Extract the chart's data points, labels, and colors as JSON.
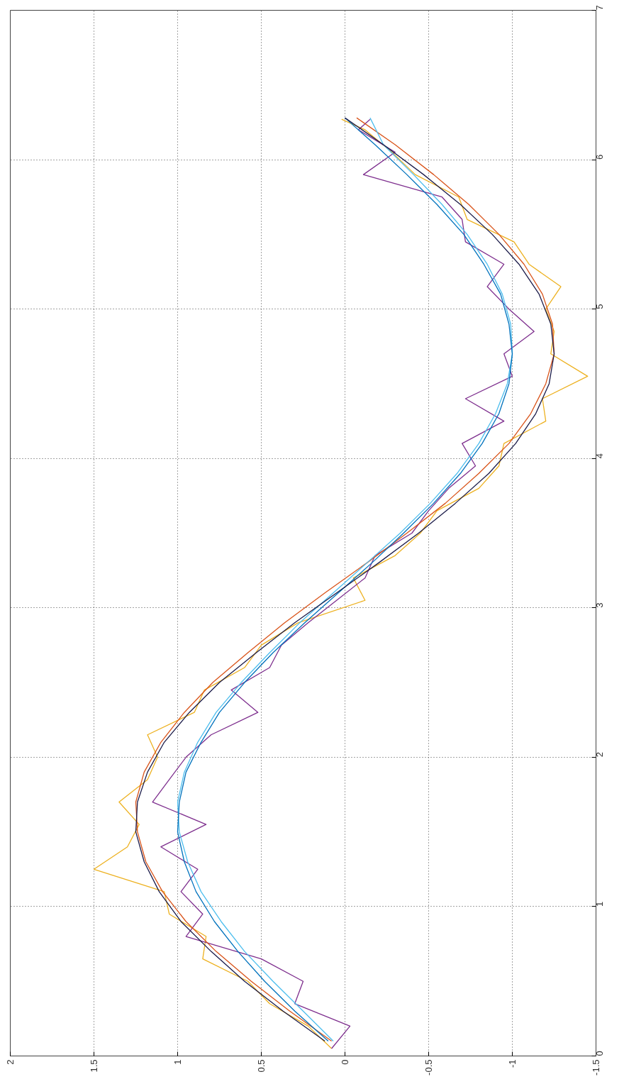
{
  "chart_data": {
    "type": "line",
    "xlim": [
      2,
      -1.5
    ],
    "ylim": [
      0,
      7
    ],
    "xticks": [
      2,
      1.5,
      1,
      0.5,
      0,
      -0.5,
      -1,
      -1.5
    ],
    "yticks": [
      0,
      1,
      2,
      3,
      4,
      5,
      6,
      7
    ],
    "grid": true,
    "line_style": "solid",
    "marker": "none",
    "series": [
      {
        "color": "#edb120",
        "x": [
          0.08,
          0.22,
          0.45,
          0.58,
          0.85,
          0.83,
          1.05,
          1.08,
          1.5,
          1.3,
          1.23,
          1.35,
          1.18,
          1.12,
          1.18,
          0.9,
          0.84,
          0.6,
          0.5,
          0.28,
          -0.12,
          -0.05,
          -0.3,
          -0.45,
          -0.55,
          -0.8,
          -0.92,
          -0.95,
          -1.2,
          -1.18,
          -1.45,
          -1.23,
          -1.25,
          -1.2,
          -1.29,
          -1.1,
          -1.01,
          -0.73,
          -0.68,
          -0.42,
          -0.28,
          -0.12,
          0.02
        ],
        "values": [
          0.05,
          0.2,
          0.35,
          0.5,
          0.65,
          0.8,
          0.95,
          1.1,
          1.25,
          1.4,
          1.55,
          1.7,
          1.85,
          2.0,
          2.15,
          2.3,
          2.45,
          2.6,
          2.75,
          2.9,
          3.05,
          3.2,
          3.35,
          3.5,
          3.65,
          3.8,
          3.95,
          4.1,
          4.25,
          4.4,
          4.55,
          4.7,
          4.85,
          5.0,
          5.15,
          5.3,
          5.45,
          5.6,
          5.75,
          5.9,
          6.05,
          6.2,
          6.27
        ]
      },
      {
        "color": "#7e2f8e",
        "x": [
          0.08,
          -0.03,
          0.3,
          0.25,
          0.5,
          0.95,
          0.85,
          0.98,
          0.88,
          1.1,
          0.83,
          1.15,
          1.05,
          0.95,
          0.8,
          0.52,
          0.68,
          0.45,
          0.38,
          0.22,
          0.05,
          -0.12,
          -0.18,
          -0.4,
          -0.5,
          -0.62,
          -0.78,
          -0.7,
          -0.95,
          -0.72,
          -1.0,
          -0.95,
          -1.13,
          -0.98,
          -0.85,
          -0.95,
          -0.72,
          -0.7,
          -0.58,
          -0.11,
          -0.3,
          -0.08,
          -0.15
        ],
        "values": [
          0.05,
          0.2,
          0.35,
          0.5,
          0.65,
          0.8,
          0.95,
          1.1,
          1.25,
          1.4,
          1.55,
          1.7,
          1.85,
          2.0,
          2.15,
          2.3,
          2.45,
          2.6,
          2.75,
          2.9,
          3.05,
          3.2,
          3.35,
          3.5,
          3.65,
          3.8,
          3.95,
          4.1,
          4.25,
          4.4,
          4.55,
          4.7,
          4.85,
          5.0,
          5.15,
          5.3,
          5.45,
          5.6,
          5.75,
          5.9,
          6.05,
          6.2,
          6.27
        ]
      },
      {
        "color": "#d95319",
        "x": [
          0.08,
          0.33,
          0.56,
          0.77,
          0.95,
          1.09,
          1.19,
          1.24,
          1.25,
          1.2,
          1.1,
          0.96,
          0.79,
          0.58,
          0.36,
          0.12,
          -0.13,
          -0.37,
          -0.6,
          -0.8,
          -0.98,
          -1.11,
          -1.2,
          -1.25,
          -1.24,
          -1.18,
          -1.07,
          -0.92,
          -0.74,
          -0.53,
          -0.3,
          -0.07
        ],
        "values": [
          0.1,
          0.3,
          0.5,
          0.7,
          0.9,
          1.1,
          1.3,
          1.5,
          1.7,
          1.9,
          2.1,
          2.3,
          2.5,
          2.7,
          2.9,
          3.1,
          3.3,
          3.5,
          3.7,
          3.9,
          4.1,
          4.3,
          4.5,
          4.7,
          4.9,
          5.1,
          5.3,
          5.5,
          5.7,
          5.9,
          6.1,
          6.28
        ]
      },
      {
        "color": "#4dbeee",
        "x": [
          0.07,
          0.25,
          0.43,
          0.6,
          0.74,
          0.86,
          0.94,
          0.99,
          1.0,
          0.96,
          0.88,
          0.77,
          0.62,
          0.45,
          0.27,
          0.07,
          -0.13,
          -0.33,
          -0.51,
          -0.67,
          -0.8,
          -0.9,
          -0.97,
          -1.0,
          -0.99,
          -0.94,
          -0.85,
          -0.73,
          -0.58,
          -0.41,
          -0.23,
          -0.15
        ],
        "values": [
          0.1,
          0.3,
          0.5,
          0.7,
          0.9,
          1.1,
          1.3,
          1.5,
          1.7,
          1.9,
          2.1,
          2.3,
          2.5,
          2.7,
          2.9,
          3.1,
          3.3,
          3.5,
          3.7,
          3.9,
          4.1,
          4.3,
          4.5,
          4.7,
          4.9,
          5.1,
          5.3,
          5.5,
          5.7,
          5.9,
          6.1,
          6.28
        ]
      },
      {
        "color": "#0072bd",
        "x": [
          0.1,
          0.3,
          0.48,
          0.64,
          0.78,
          0.89,
          0.96,
          1.0,
          0.99,
          0.95,
          0.86,
          0.75,
          0.6,
          0.43,
          0.24,
          0.04,
          -0.16,
          -0.35,
          -0.53,
          -0.69,
          -0.82,
          -0.92,
          -0.98,
          -1.0,
          -0.98,
          -0.93,
          -0.83,
          -0.71,
          -0.55,
          -0.37,
          -0.18,
          0.0
        ],
        "values": [
          0.1,
          0.3,
          0.5,
          0.7,
          0.9,
          1.1,
          1.3,
          1.5,
          1.7,
          1.9,
          2.1,
          2.3,
          2.5,
          2.7,
          2.9,
          3.1,
          3.3,
          3.5,
          3.7,
          3.9,
          4.1,
          4.3,
          4.5,
          4.7,
          4.9,
          5.1,
          5.3,
          5.5,
          5.7,
          5.9,
          6.1,
          6.28
        ]
      },
      {
        "color": "#1c1c4a",
        "x": [
          0.12,
          0.37,
          0.6,
          0.8,
          0.98,
          1.11,
          1.2,
          1.25,
          1.24,
          1.18,
          1.08,
          0.93,
          0.75,
          0.53,
          0.3,
          0.05,
          -0.2,
          -0.44,
          -0.66,
          -0.86,
          -1.02,
          -1.14,
          -1.22,
          -1.25,
          -1.23,
          -1.16,
          -1.04,
          -0.88,
          -0.69,
          -0.47,
          -0.23,
          0.0
        ],
        "values": [
          0.1,
          0.3,
          0.5,
          0.7,
          0.9,
          1.1,
          1.3,
          1.5,
          1.7,
          1.9,
          2.1,
          2.3,
          2.5,
          2.7,
          2.9,
          3.1,
          3.3,
          3.5,
          3.7,
          3.9,
          4.1,
          4.3,
          4.5,
          4.7,
          4.9,
          5.1,
          5.3,
          5.5,
          5.7,
          5.9,
          6.1,
          6.28
        ]
      }
    ]
  }
}
